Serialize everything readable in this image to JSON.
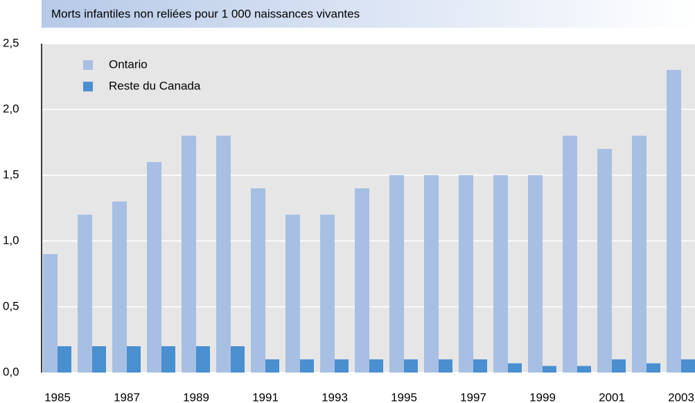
{
  "chart_data": {
    "type": "bar",
    "title": "Morts infantiles non reliées pour 1 000 naissances vivantes",
    "categories": [
      "1985",
      null,
      "1987",
      null,
      "1989",
      null,
      "1991",
      null,
      "1993",
      null,
      "1995",
      null,
      "1997",
      null,
      "1999",
      null,
      "2001",
      null,
      "2003"
    ],
    "series": [
      {
        "name": "Ontario",
        "color": "#a7bfe3",
        "values": [
          0.9,
          1.2,
          1.3,
          1.6,
          1.8,
          1.8,
          1.4,
          1.2,
          1.2,
          1.4,
          1.5,
          1.5,
          1.5,
          1.5,
          1.5,
          1.8,
          1.7,
          1.8,
          2.3
        ]
      },
      {
        "name": "Reste du Canada",
        "color": "#4a8fd0",
        "values": [
          0.2,
          0.2,
          0.2,
          0.2,
          0.2,
          0.2,
          0.1,
          0.1,
          0.1,
          0.1,
          0.1,
          0.1,
          0.1,
          0.07,
          0.05,
          0.05,
          0.1,
          0.07,
          0.1
        ]
      }
    ],
    "ylim": [
      0,
      2.5
    ],
    "yticks": [
      {
        "value": 0,
        "label": "0,0"
      },
      {
        "value": 0.5,
        "label": "0,5"
      },
      {
        "value": 1,
        "label": "1,0"
      },
      {
        "value": 1.5,
        "label": "1,5"
      },
      {
        "value": 2,
        "label": "2,0"
      },
      {
        "value": 2.5,
        "label": "2,5"
      }
    ],
    "grid": true,
    "legend": "upper left"
  }
}
